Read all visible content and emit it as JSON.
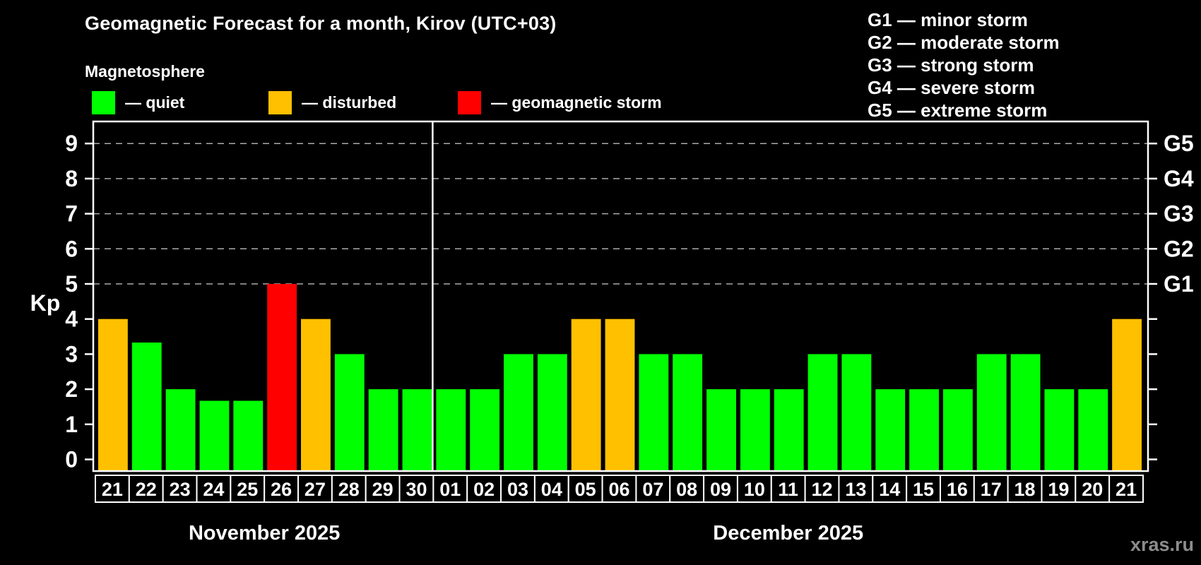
{
  "header": {
    "title": "Geomagnetic Forecast for a month, Kirov (UTC+03)",
    "subtitle": "Magnetosphere"
  },
  "legend": {
    "items": [
      {
        "name": "quiet",
        "label": "— quiet",
        "color": "#00ff00"
      },
      {
        "name": "disturbed",
        "label": "— disturbed",
        "color": "#ffc000"
      },
      {
        "name": "storm",
        "label": "— geomagnetic storm",
        "color": "#ff0000"
      }
    ]
  },
  "g_legend": {
    "items": [
      "G1 — minor storm",
      "G2 — moderate storm",
      "G3 — strong storm",
      "G4 — severe storm",
      "G5 — extreme storm"
    ]
  },
  "watermark": "xras.ru",
  "colors": {
    "quiet": "#00ff00",
    "disturbed": "#ffc000",
    "storm": "#ff0000",
    "grid": "#aaaaaa",
    "axis": "#ffffff",
    "background": "#000000"
  },
  "chart_data": {
    "type": "bar",
    "title": "Geomagnetic Forecast for a month, Kirov (UTC+03)",
    "ylabel": "Kp",
    "ylim": [
      0,
      9
    ],
    "yticks": [
      0,
      1,
      2,
      3,
      4,
      5,
      6,
      7,
      8,
      9
    ],
    "grid_levels": [
      5,
      6,
      7,
      8,
      9
    ],
    "grid_on": true,
    "right_axis_labels": [
      {
        "value": 5,
        "label": "G1"
      },
      {
        "value": 6,
        "label": "G2"
      },
      {
        "value": 7,
        "label": "G3"
      },
      {
        "value": 8,
        "label": "G4"
      },
      {
        "value": 9,
        "label": "G5"
      }
    ],
    "months": [
      {
        "label": "November 2025",
        "days": [
          {
            "day": "21",
            "value": 4,
            "status": "disturbed"
          },
          {
            "day": "22",
            "value": 3.33,
            "status": "quiet"
          },
          {
            "day": "23",
            "value": 2,
            "status": "quiet"
          },
          {
            "day": "24",
            "value": 1.67,
            "status": "quiet"
          },
          {
            "day": "25",
            "value": 1.67,
            "status": "quiet"
          },
          {
            "day": "26",
            "value": 5,
            "status": "storm"
          },
          {
            "day": "27",
            "value": 4,
            "status": "disturbed"
          },
          {
            "day": "28",
            "value": 3,
            "status": "quiet"
          },
          {
            "day": "29",
            "value": 2,
            "status": "quiet"
          },
          {
            "day": "30",
            "value": 2,
            "status": "quiet"
          }
        ]
      },
      {
        "label": "December 2025",
        "days": [
          {
            "day": "01",
            "value": 2,
            "status": "quiet"
          },
          {
            "day": "02",
            "value": 2,
            "status": "quiet"
          },
          {
            "day": "03",
            "value": 3,
            "status": "quiet"
          },
          {
            "day": "04",
            "value": 3,
            "status": "quiet"
          },
          {
            "day": "05",
            "value": 4,
            "status": "disturbed"
          },
          {
            "day": "06",
            "value": 4,
            "status": "disturbed"
          },
          {
            "day": "07",
            "value": 3,
            "status": "quiet"
          },
          {
            "day": "08",
            "value": 3,
            "status": "quiet"
          },
          {
            "day": "09",
            "value": 2,
            "status": "quiet"
          },
          {
            "day": "10",
            "value": 2,
            "status": "quiet"
          },
          {
            "day": "11",
            "value": 2,
            "status": "quiet"
          },
          {
            "day": "12",
            "value": 3,
            "status": "quiet"
          },
          {
            "day": "13",
            "value": 3,
            "status": "quiet"
          },
          {
            "day": "14",
            "value": 2,
            "status": "quiet"
          },
          {
            "day": "15",
            "value": 2,
            "status": "quiet"
          },
          {
            "day": "16",
            "value": 2,
            "status": "quiet"
          },
          {
            "day": "17",
            "value": 3,
            "status": "quiet"
          },
          {
            "day": "18",
            "value": 3,
            "status": "quiet"
          },
          {
            "day": "19",
            "value": 2,
            "status": "quiet"
          },
          {
            "day": "20",
            "value": 2,
            "status": "quiet"
          }
        ]
      }
    ],
    "december_last_day": {
      "day": "21",
      "value": 4,
      "status": "disturbed"
    }
  }
}
